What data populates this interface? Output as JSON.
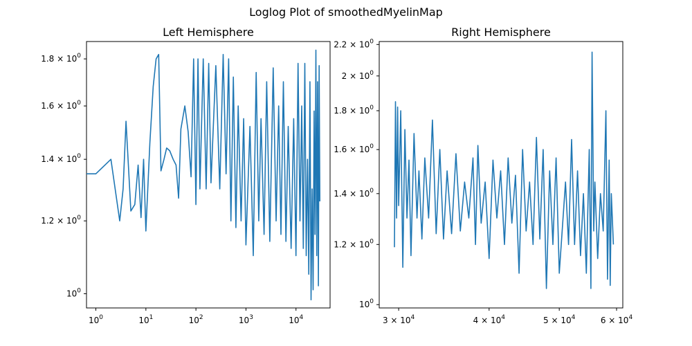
{
  "figure": {
    "suptitle": "Loglog Plot of smoothedMyelinMap"
  },
  "chart_data": [
    {
      "type": "line",
      "title": "Left Hemisphere",
      "xscale": "log",
      "yscale": "log",
      "xlim": [
        0.65,
        48000
      ],
      "ylim": [
        0.965,
        1.88
      ],
      "color": "#1f77b4",
      "xticks": [
        {
          "value": 1,
          "base": "10",
          "exp": "0"
        },
        {
          "value": 10,
          "base": "10",
          "exp": "1"
        },
        {
          "value": 100,
          "base": "10",
          "exp": "2"
        },
        {
          "value": 1000,
          "base": "10",
          "exp": "3"
        },
        {
          "value": 10000,
          "base": "10",
          "exp": "4"
        }
      ],
      "yticks": [
        {
          "value": 1.0,
          "mant": "",
          "base": "10",
          "exp": "0"
        },
        {
          "value": 1.2,
          "mant": "1.2 × ",
          "base": "10",
          "exp": "0"
        },
        {
          "value": 1.4,
          "mant": "1.4 × ",
          "base": "10",
          "exp": "0"
        },
        {
          "value": 1.6,
          "mant": "1.6 × ",
          "base": "10",
          "exp": "0"
        },
        {
          "value": 1.8,
          "mant": "1.8 × ",
          "base": "10",
          "exp": "0"
        }
      ],
      "points": [
        [
          0.65,
          1.35
        ],
        [
          1,
          1.35
        ],
        [
          2,
          1.4
        ],
        [
          3,
          1.2
        ],
        [
          3.5,
          1.3
        ],
        [
          4,
          1.54
        ],
        [
          5,
          1.23
        ],
        [
          6,
          1.25
        ],
        [
          7,
          1.38
        ],
        [
          8,
          1.21
        ],
        [
          9,
          1.4
        ],
        [
          10,
          1.17
        ],
        [
          12,
          1.46
        ],
        [
          14,
          1.68
        ],
        [
          16,
          1.8
        ],
        [
          18,
          1.82
        ],
        [
          20,
          1.36
        ],
        [
          23,
          1.4
        ],
        [
          26,
          1.44
        ],
        [
          30,
          1.43
        ],
        [
          35,
          1.4
        ],
        [
          40,
          1.38
        ],
        [
          45,
          1.27
        ],
        [
          50,
          1.51
        ],
        [
          60,
          1.6
        ],
        [
          70,
          1.5
        ],
        [
          80,
          1.34
        ],
        [
          90,
          1.8
        ],
        [
          100,
          1.25
        ],
        [
          110,
          1.8
        ],
        [
          120,
          1.3
        ],
        [
          140,
          1.8
        ],
        [
          160,
          1.3
        ],
        [
          180,
          1.78
        ],
        [
          200,
          1.32
        ],
        [
          250,
          1.77
        ],
        [
          300,
          1.3
        ],
        [
          350,
          1.82
        ],
        [
          400,
          1.35
        ],
        [
          450,
          1.8
        ],
        [
          500,
          1.2
        ],
        [
          560,
          1.72
        ],
        [
          630,
          1.18
        ],
        [
          700,
          1.6
        ],
        [
          800,
          1.2
        ],
        [
          900,
          1.55
        ],
        [
          1000,
          1.13
        ],
        [
          1200,
          1.52
        ],
        [
          1400,
          1.1
        ],
        [
          1600,
          1.74
        ],
        [
          1800,
          1.2
        ],
        [
          2000,
          1.55
        ],
        [
          2300,
          1.16
        ],
        [
          2600,
          1.7
        ],
        [
          3000,
          1.14
        ],
        [
          3500,
          1.76
        ],
        [
          4000,
          1.2
        ],
        [
          4500,
          1.6
        ],
        [
          5000,
          1.16
        ],
        [
          5600,
          1.7
        ],
        [
          6300,
          1.14
        ],
        [
          7000,
          1.52
        ],
        [
          8000,
          1.12
        ],
        [
          9000,
          1.55
        ],
        [
          10000,
          1.1
        ],
        [
          11000,
          1.78
        ],
        [
          12000,
          1.2
        ],
        [
          13000,
          1.6
        ],
        [
          14000,
          1.12
        ],
        [
          15000,
          1.78
        ],
        [
          16000,
          1.1
        ],
        [
          17000,
          1.4
        ],
        [
          18000,
          1.05
        ],
        [
          19000,
          1.7
        ],
        [
          20000,
          0.985
        ],
        [
          21000,
          1.3
        ],
        [
          22000,
          1.01
        ],
        [
          23000,
          1.58
        ],
        [
          24000,
          1.16
        ],
        [
          25000,
          1.84
        ],
        [
          26000,
          1.1
        ],
        [
          27000,
          1.7
        ],
        [
          28000,
          1.02
        ],
        [
          29000,
          1.77
        ],
        [
          30000,
          1.26
        ]
      ]
    },
    {
      "type": "line",
      "title": "Right Hemisphere",
      "xscale": "log",
      "yscale": "log",
      "xlim": [
        28200,
        61200
      ],
      "ylim": [
        0.99,
        2.22
      ],
      "color": "#1f77b4",
      "xticks": [
        {
          "value": 30000,
          "mant": "3 × ",
          "base": "10",
          "exp": "4"
        },
        {
          "value": 40000,
          "mant": "4 × ",
          "base": "10",
          "exp": "4"
        },
        {
          "value": 50000,
          "mant": "5 × ",
          "base": "10",
          "exp": "4"
        },
        {
          "value": 60000,
          "mant": "6 × ",
          "base": "10",
          "exp": "4"
        }
      ],
      "yticks": [
        {
          "value": 1.0,
          "mant": "",
          "base": "10",
          "exp": "0"
        },
        {
          "value": 1.2,
          "mant": "1.2 × ",
          "base": "10",
          "exp": "0"
        },
        {
          "value": 1.4,
          "mant": "1.4 × ",
          "base": "10",
          "exp": "0"
        },
        {
          "value": 1.6,
          "mant": "1.6 × ",
          "base": "10",
          "exp": "0"
        },
        {
          "value": 1.8,
          "mant": "1.8 × ",
          "base": "10",
          "exp": "0"
        },
        {
          "value": 2.0,
          "mant": "2 × ",
          "base": "10",
          "exp": "0"
        },
        {
          "value": 2.2,
          "mant": "2.2 × ",
          "base": "10",
          "exp": "0"
        }
      ],
      "points": [
        [
          29600,
          1.19
        ],
        [
          29700,
          1.85
        ],
        [
          29800,
          1.3
        ],
        [
          29900,
          1.82
        ],
        [
          30000,
          1.35
        ],
        [
          30200,
          1.8
        ],
        [
          30400,
          1.12
        ],
        [
          30600,
          1.7
        ],
        [
          30800,
          1.3
        ],
        [
          31000,
          1.55
        ],
        [
          31200,
          1.16
        ],
        [
          31500,
          1.68
        ],
        [
          31800,
          1.3
        ],
        [
          32000,
          1.5
        ],
        [
          32300,
          1.22
        ],
        [
          32600,
          1.56
        ],
        [
          33000,
          1.3
        ],
        [
          33400,
          1.75
        ],
        [
          33800,
          1.24
        ],
        [
          34200,
          1.6
        ],
        [
          34600,
          1.22
        ],
        [
          35000,
          1.5
        ],
        [
          35500,
          1.24
        ],
        [
          36000,
          1.58
        ],
        [
          36500,
          1.25
        ],
        [
          37000,
          1.45
        ],
        [
          37500,
          1.3
        ],
        [
          38000,
          1.56
        ],
        [
          38300,
          1.2
        ],
        [
          38600,
          1.62
        ],
        [
          39000,
          1.28
        ],
        [
          39500,
          1.45
        ],
        [
          40000,
          1.15
        ],
        [
          40500,
          1.55
        ],
        [
          41000,
          1.3
        ],
        [
          41500,
          1.5
        ],
        [
          42000,
          1.2
        ],
        [
          42500,
          1.56
        ],
        [
          43000,
          1.28
        ],
        [
          43500,
          1.48
        ],
        [
          44000,
          1.1
        ],
        [
          44500,
          1.6
        ],
        [
          45000,
          1.25
        ],
        [
          45500,
          1.45
        ],
        [
          46000,
          1.2
        ],
        [
          46500,
          1.66
        ],
        [
          47000,
          1.22
        ],
        [
          47500,
          1.6
        ],
        [
          48000,
          1.05
        ],
        [
          48500,
          1.5
        ],
        [
          49000,
          1.2
        ],
        [
          49500,
          1.56
        ],
        [
          50000,
          1.1
        ],
        [
          51000,
          1.45
        ],
        [
          51500,
          1.2
        ],
        [
          52000,
          1.65
        ],
        [
          52500,
          1.2
        ],
        [
          53000,
          1.5
        ],
        [
          53500,
          1.16
        ],
        [
          54000,
          1.4
        ],
        [
          54500,
          1.1
        ],
        [
          55000,
          1.6
        ],
        [
          55300,
          1.05
        ],
        [
          55500,
          2.15
        ],
        [
          55800,
          1.25
        ],
        [
          56000,
          1.45
        ],
        [
          56500,
          1.15
        ],
        [
          57000,
          1.4
        ],
        [
          57500,
          1.25
        ],
        [
          58000,
          1.8
        ],
        [
          58300,
          1.08
        ],
        [
          58600,
          1.55
        ],
        [
          58800,
          1.06
        ],
        [
          59000,
          1.4
        ],
        [
          59400,
          1.2
        ]
      ]
    }
  ]
}
